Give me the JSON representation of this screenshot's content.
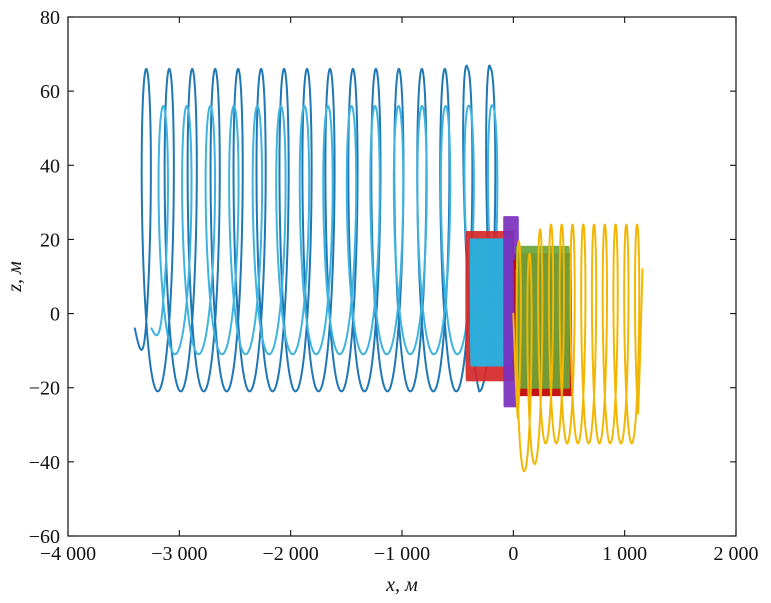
{
  "chart_data": {
    "type": "line",
    "title": "",
    "xlabel": "x, м",
    "ylabel": "z, м",
    "xlim": [
      -4000,
      2000
    ],
    "ylim": [
      -60,
      80
    ],
    "xticks": [
      -4000,
      -3000,
      -2000,
      -1000,
      0,
      1000,
      2000
    ],
    "yticks": [
      -60,
      -40,
      -20,
      0,
      20,
      40,
      60,
      80
    ],
    "xtick_labels": [
      "−4 000",
      "−3 000",
      "−2 000",
      "−1 000",
      "0",
      "1 000",
      "2 000"
    ],
    "ytick_labels": [
      "−60",
      "−40",
      "−20",
      "0",
      "20",
      "40",
      "60",
      "80"
    ],
    "grid": false,
    "legend": "none",
    "series": [
      {
        "color": "#1f77b4",
        "kind": "helix",
        "x_start": -3400,
        "z_start": -4,
        "x_end": -100,
        "z_end": -10,
        "loop_count": 16,
        "z_top": 66,
        "z_bottom": -21,
        "final_loop_peak": 79
      },
      {
        "color": "#3fb3df",
        "kind": "helix",
        "x_start": -3250,
        "z_start": -4,
        "x_end": -80,
        "z_end": -8,
        "loop_count": 15,
        "z_top": 56,
        "z_bottom": -11,
        "final_loop_peak": 61
      },
      {
        "color": "#d62728",
        "kind": "dense_block",
        "x_range": [
          -420,
          0
        ],
        "z_range": [
          -18,
          22
        ]
      },
      {
        "color": "#1fb7e8",
        "kind": "dense_block",
        "x_range": [
          -380,
          -20
        ],
        "z_range": [
          -14,
          20
        ]
      },
      {
        "color": "#7b2fbe",
        "kind": "dense_block",
        "x_range": [
          -80,
          40
        ],
        "z_range": [
          -25,
          26
        ]
      },
      {
        "color": "#c00000",
        "kind": "dense_block",
        "x_range": [
          20,
          520
        ],
        "z_range": [
          -22,
          16
        ]
      },
      {
        "color": "#6aa63a",
        "kind": "dense_block",
        "x_range": [
          30,
          500
        ],
        "z_range": [
          -20,
          18
        ]
      },
      {
        "color": "#f2b705",
        "kind": "helix_with_drop",
        "x_start": 0,
        "z_start": 0,
        "x_end": 1160,
        "z_end": 12,
        "loop_count": 12,
        "z_top": 24,
        "z_bottom": -35,
        "drop_min": -53
      }
    ]
  }
}
